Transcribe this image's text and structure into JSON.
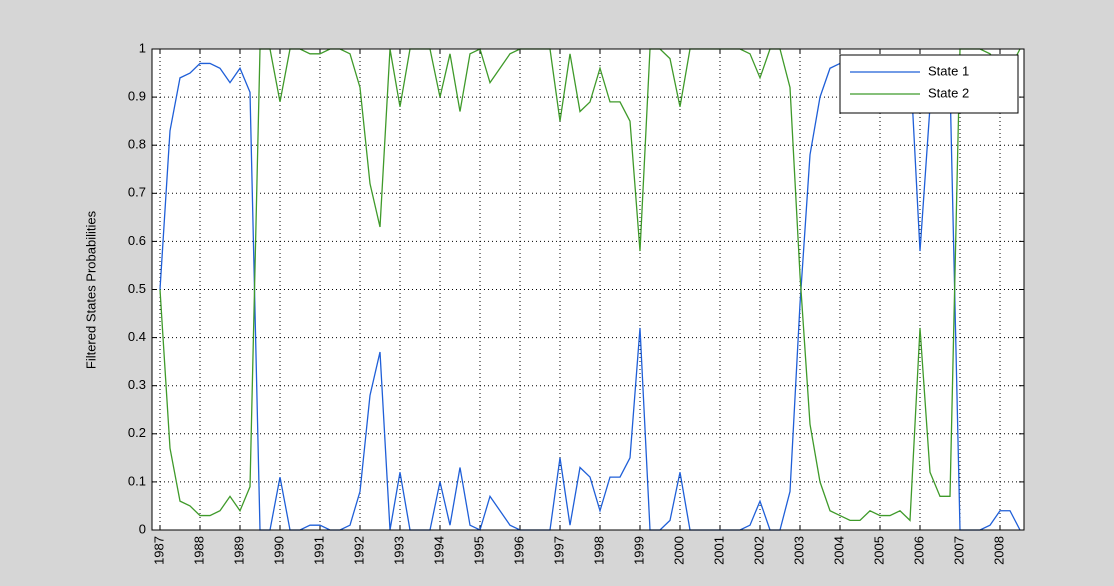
{
  "chart_data": {
    "type": "line",
    "ylabel": "Filtered States Probabilities",
    "x": [
      1987,
      1987.25,
      1987.5,
      1987.75,
      1988,
      1988.25,
      1988.5,
      1988.75,
      1989,
      1989.25,
      1989.5,
      1989.75,
      1990,
      1990.25,
      1990.5,
      1990.75,
      1991,
      1991.25,
      1991.5,
      1991.75,
      1992,
      1992.25,
      1992.5,
      1992.75,
      1993,
      1993.25,
      1993.5,
      1993.75,
      1994,
      1994.25,
      1994.5,
      1994.75,
      1995,
      1995.25,
      1995.5,
      1995.75,
      1996,
      1996.25,
      1996.5,
      1996.75,
      1997,
      1997.25,
      1997.5,
      1997.75,
      1998,
      1998.25,
      1998.5,
      1998.75,
      1999,
      1999.25,
      1999.5,
      1999.75,
      2000,
      2000.25,
      2000.5,
      2000.75,
      2001,
      2001.25,
      2001.5,
      2001.75,
      2002,
      2002.25,
      2002.5,
      2002.75,
      2003,
      2003.25,
      2003.5,
      2003.75,
      2004,
      2004.25,
      2004.5,
      2004.75,
      2005,
      2005.25,
      2005.5,
      2005.75,
      2006,
      2006.25,
      2006.5,
      2006.75,
      2007,
      2007.25,
      2007.5,
      2007.75,
      2008,
      2008.25,
      2008.5
    ],
    "series": [
      {
        "name": "State 1",
        "color": "#1f5fd8",
        "values": [
          0.5,
          0.83,
          0.94,
          0.95,
          0.97,
          0.97,
          0.96,
          0.93,
          0.96,
          0.91,
          0,
          0,
          0.11,
          0,
          0,
          0.01,
          0.01,
          0,
          0,
          0.01,
          0.08,
          0.28,
          0.37,
          0,
          0.12,
          0,
          0,
          0,
          0.1,
          0.01,
          0.13,
          0.01,
          0,
          0.07,
          0.04,
          0.01,
          0,
          0,
          0,
          0,
          0.15,
          0.01,
          0.13,
          0.11,
          0.04,
          0.11,
          0.11,
          0.15,
          0.42,
          0,
          0,
          0.02,
          0.12,
          0,
          0,
          0,
          0,
          0,
          0,
          0.01,
          0.06,
          0,
          0,
          0.08,
          0.47,
          0.78,
          0.9,
          0.96,
          0.97,
          0.98,
          0.98,
          0.96,
          0.97,
          0.97,
          0.96,
          0.98,
          0.58,
          0.88,
          0.93,
          0.93,
          0,
          0,
          0,
          0.01,
          0.04,
          0.04,
          0
        ]
      },
      {
        "name": "State 2",
        "color": "#3f9a2a",
        "values": [
          0.5,
          0.17,
          0.06,
          0.05,
          0.03,
          0.03,
          0.04,
          0.07,
          0.04,
          0.09,
          1,
          1,
          0.89,
          1,
          1,
          0.99,
          0.99,
          1,
          1,
          0.99,
          0.92,
          0.72,
          0.63,
          1,
          0.88,
          1,
          1,
          1,
          0.9,
          0.99,
          0.87,
          0.99,
          1,
          0.93,
          0.96,
          0.99,
          1,
          1,
          1,
          1,
          0.85,
          0.99,
          0.87,
          0.89,
          0.96,
          0.89,
          0.89,
          0.85,
          0.58,
          1,
          1,
          0.98,
          0.88,
          1,
          1,
          1,
          1,
          1,
          1,
          0.99,
          0.94,
          1,
          1,
          0.92,
          0.53,
          0.22,
          0.1,
          0.04,
          0.03,
          0.02,
          0.02,
          0.04,
          0.03,
          0.03,
          0.04,
          0.02,
          0.42,
          0.12,
          0.07,
          0.07,
          1,
          1,
          1,
          0.99,
          0.96,
          0.96,
          1
        ]
      }
    ],
    "xlim": [
      1986.8,
      2008.6
    ],
    "ylim": [
      0,
      1
    ],
    "xticks": [
      1987,
      1988,
      1989,
      1990,
      1991,
      1992,
      1993,
      1994,
      1995,
      1996,
      1997,
      1998,
      1999,
      2000,
      2001,
      2002,
      2003,
      2004,
      2005,
      2006,
      2007,
      2008
    ],
    "yticks": [
      0,
      0.1,
      0.2,
      0.3,
      0.4,
      0.5,
      0.6,
      0.7,
      0.8,
      0.9,
      1
    ],
    "grid": true,
    "legend": "top-right"
  }
}
